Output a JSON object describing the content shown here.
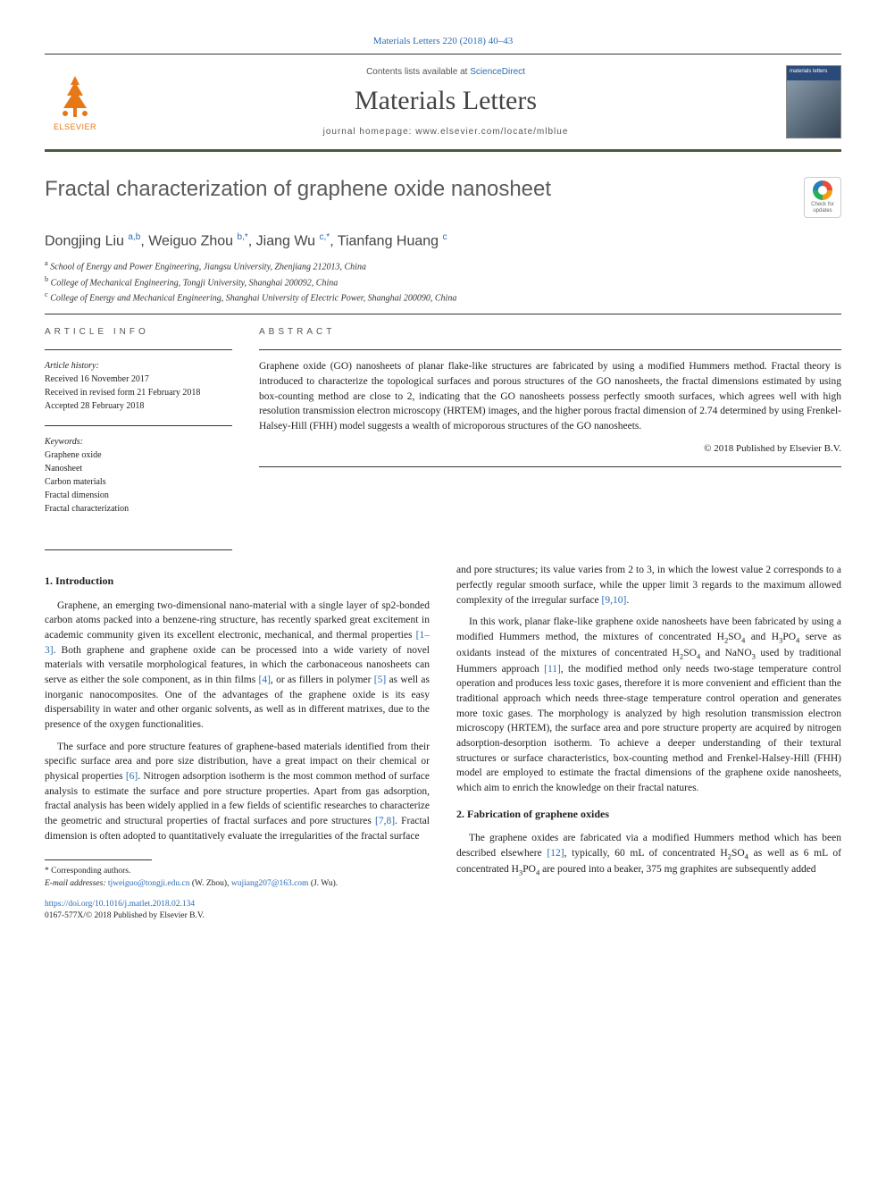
{
  "citation": "Materials Letters 220 (2018) 40–43",
  "header": {
    "contents_prefix": "Contents lists available at ",
    "contents_link": "ScienceDirect",
    "journal": "Materials Letters",
    "homepage_prefix": "journal homepage: ",
    "homepage": "www.elsevier.com/locate/mlblue",
    "publisher": "ELSEVIER",
    "cover_label": "materials letters"
  },
  "check_badge": "Check for updates",
  "title": "Fractal characterization of graphene oxide nanosheet",
  "authors_html": "Dongjing Liu <sup>a,b</sup>, Weiguo Zhou <sup>b,*</sup>, Jiang Wu <sup>c,*</sup>, Tianfang Huang <sup>c</sup>",
  "affiliations": {
    "a": "School of Energy and Power Engineering, Jiangsu University, Zhenjiang 212013, China",
    "b": "College of Mechanical Engineering, Tongji University, Shanghai 200092, China",
    "c": "College of Energy and Mechanical Engineering, Shanghai University of Electric Power, Shanghai 200090, China"
  },
  "article_info": {
    "label": "ARTICLE INFO",
    "history_label": "Article history:",
    "received": "Received 16 November 2017",
    "revised": "Received in revised form 21 February 2018",
    "accepted": "Accepted 28 February 2018",
    "keywords_label": "Keywords:",
    "keywords": [
      "Graphene oxide",
      "Nanosheet",
      "Carbon materials",
      "Fractal dimension",
      "Fractal characterization"
    ]
  },
  "abstract": {
    "label": "ABSTRACT",
    "text": "Graphene oxide (GO) nanosheets of planar flake-like structures are fabricated by using a modified Hummers method. Fractal theory is introduced to characterize the topological surfaces and porous structures of the GO nanosheets, the fractal dimensions estimated by using box-counting method are close to 2, indicating that the GO nanosheets possess perfectly smooth surfaces, which agrees well with high resolution transmission electron microscopy (HRTEM) images, and the higher porous fractal dimension of 2.74 determined by using Frenkel-Halsey-Hill (FHH) model suggests a wealth of microporous structures of the GO nanosheets.",
    "copyright": "© 2018 Published by Elsevier B.V."
  },
  "sections": {
    "s1_head": "1. Introduction",
    "s1_p1": "Graphene, an emerging two-dimensional nano-material with a single layer of sp2-bonded carbon atoms packed into a benzene-ring structure, has recently sparked great excitement in academic community given its excellent electronic, mechanical, and thermal properties [1–3]. Both graphene and graphene oxide can be processed into a wide variety of novel materials with versatile morphological features, in which the carbonaceous nanosheets can serve as either the sole component, as in thin films [4], or as fillers in polymer [5] as well as inorganic nanocomposites. One of the advantages of the graphene oxide is its easy dispersability in water and other organic solvents, as well as in different matrixes, due to the presence of the oxygen functionalities.",
    "s1_p2": "The surface and pore structure features of graphene-based materials identified from their specific surface area and pore size distribution, have a great impact on their chemical or physical properties [6]. Nitrogen adsorption isotherm is the most common method of surface analysis to estimate the surface and pore structure properties. Apart from gas adsorption, fractal analysis has been widely applied in a few fields of scientific researches to characterize the geometric and structural properties of fractal surfaces and pore structures [7,8]. Fractal dimension is often adopted to quantitatively evaluate the irregularities of the fractal surface",
    "s1_p3": "and pore structures; its value varies from 2 to 3, in which the lowest value 2 corresponds to a perfectly regular smooth surface, while the upper limit 3 regards to the maximum allowed complexity of the irregular surface [9,10].",
    "s1_p4": "In this work, planar flake-like graphene oxide nanosheets have been fabricated by using a modified Hummers method, the mixtures of concentrated H₂SO₄ and H₃PO₄ serve as oxidants instead of the mixtures of concentrated H₂SO₄ and NaNO₃ used by traditional Hummers approach [11], the modified method only needs two-stage temperature control operation and produces less toxic gases, therefore it is more convenient and efficient than the traditional approach which needs three-stage temperature control operation and generates more toxic gases. The morphology is analyzed by high resolution transmission electron microscopy (HRTEM), the surface area and pore structure property are acquired by nitrogen adsorption-desorption isotherm. To achieve a deeper understanding of their textural structures or surface characteristics, box-counting method and Frenkel-Halsey-Hill (FHH) model are employed to estimate the fractal dimensions of the graphene oxide nanosheets, which aim to enrich the knowledge on their fractal natures.",
    "s2_head": "2. Fabrication of graphene oxides",
    "s2_p1": "The graphene oxides are fabricated via a modified Hummers method which has been described elsewhere [12], typically, 60 mL of concentrated H₂SO₄ as well as 6 mL of concentrated H₃PO₄ are poured into a beaker, 375 mg graphites are subsequently added"
  },
  "refs": {
    "r1_3": "[1–3]",
    "r4": "[4]",
    "r5": "[5]",
    "r6": "[6]",
    "r7_8": "[7,8]",
    "r9_10": "[9,10]",
    "r11": "[11]",
    "r12": "[12]"
  },
  "footnote": {
    "corr": "* Corresponding authors.",
    "email_label": "E-mail addresses:",
    "email1": "tjweiguo@tongji.edu.cn",
    "email1_who": "(W. Zhou),",
    "email2": "wujiang207@163.com",
    "email2_who": "(J. Wu)."
  },
  "doi": {
    "url": "https://doi.org/10.1016/j.matlet.2018.02.134",
    "issn": "0167-577X/© 2018 Published by Elsevier B.V."
  },
  "colors": {
    "link": "#2a6cb4",
    "brand_orange": "#e67817",
    "rule": "#333333",
    "olive_bar": "#4a5a3a"
  }
}
